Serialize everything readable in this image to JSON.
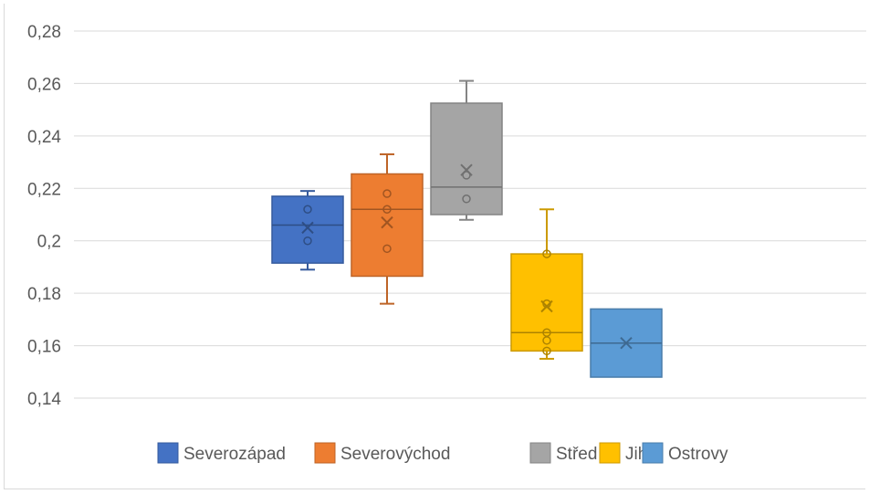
{
  "chart_data": {
    "type": "box",
    "title": "",
    "xlabel": "",
    "ylabel": "",
    "ylim": [
      0.14,
      0.28
    ],
    "yticks": [
      "0,14",
      "0,16",
      "0,18",
      "0,2",
      "0,22",
      "0,24",
      "0,26",
      "0,28"
    ],
    "ytick_values": [
      0.14,
      0.16,
      0.18,
      0.2,
      0.22,
      0.24,
      0.26,
      0.28
    ],
    "grid": true,
    "legend_position": "bottom",
    "series": [
      {
        "name": "Severozápad",
        "color": "#4472c4",
        "min": 0.189,
        "q1": 0.1915,
        "median": 0.206,
        "q3": 0.217,
        "max": 0.219,
        "mean": 0.205,
        "points": [
          0.212,
          0.2
        ]
      },
      {
        "name": "Severovýchod",
        "color": "#ed7d31",
        "min": 0.176,
        "q1": 0.1865,
        "median": 0.212,
        "q3": 0.2255,
        "max": 0.233,
        "mean": 0.207,
        "points": [
          0.218,
          0.212,
          0.197
        ]
      },
      {
        "name": "Střed",
        "color": "#a5a5a5",
        "min": 0.208,
        "q1": 0.21,
        "median": 0.2205,
        "q3": 0.2525,
        "max": 0.261,
        "mean": 0.227,
        "points": [
          0.225,
          0.216
        ]
      },
      {
        "name": "Jih",
        "color": "#ffc000",
        "min": 0.155,
        "q1": 0.158,
        "median": 0.165,
        "q3": 0.195,
        "max": 0.212,
        "mean": 0.175,
        "points": [
          0.195,
          0.176,
          0.165,
          0.162,
          0.158
        ]
      },
      {
        "name": "Ostrovy",
        "color": "#5b9bd5",
        "min": 0.148,
        "q1": 0.148,
        "median": 0.161,
        "q3": 0.174,
        "max": 0.174,
        "mean": 0.161,
        "points": []
      }
    ]
  }
}
